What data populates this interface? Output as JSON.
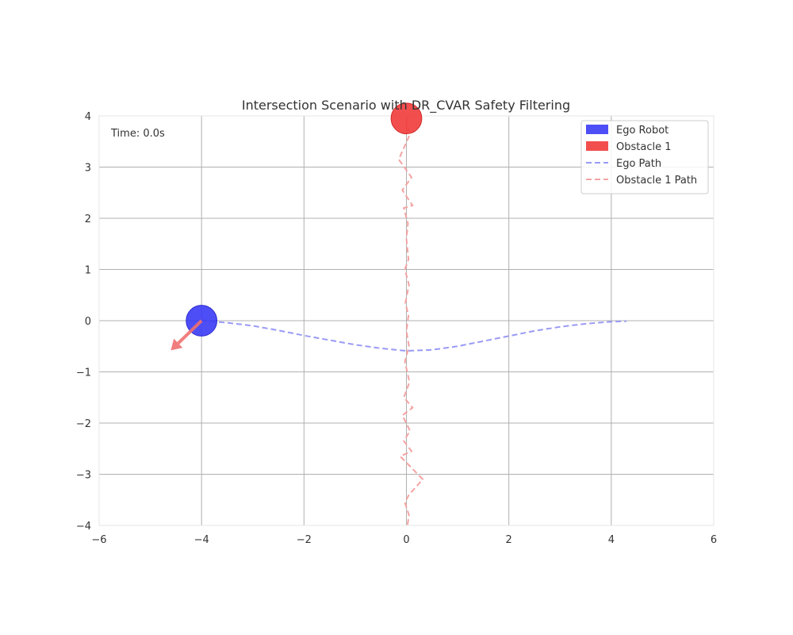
{
  "chart_data": {
    "type": "scatter",
    "title": "Intersection Scenario with DR_CVAR Safety Filtering",
    "xlabel": "",
    "ylabel": "",
    "xlim": [
      -6,
      6
    ],
    "ylim": [
      -4,
      4
    ],
    "x_ticks": [
      -6,
      -4,
      -2,
      0,
      2,
      4,
      6
    ],
    "y_ticks": [
      -4,
      -3,
      -2,
      -1,
      0,
      1,
      2,
      3,
      4
    ],
    "x_tick_labels": [
      "−6",
      "−4",
      "−2",
      "0",
      "2",
      "4",
      "6"
    ],
    "y_tick_labels": [
      "−4",
      "−3",
      "−2",
      "−1",
      "0",
      "1",
      "2",
      "3",
      "4"
    ],
    "grid": true,
    "legend_position": "top-right",
    "annotation": "Time: 0.0s",
    "legend": [
      {
        "label": "Ego Robot",
        "kind": "patch",
        "color": "#3b3bf5"
      },
      {
        "label": "Obstacle 1",
        "kind": "patch",
        "color": "#f23b3b"
      },
      {
        "label": "Ego Path",
        "kind": "dashed-line",
        "color": "#9a9af5"
      },
      {
        "label": "Obstacle 1 Path",
        "kind": "dashed-line",
        "color": "#f5a3a3"
      }
    ],
    "ego_robot": {
      "x": -4.0,
      "y": 0.0,
      "radius": 0.3,
      "color": "#3b3bf5"
    },
    "obstacle": {
      "x": 0.0,
      "y": 3.95,
      "radius": 0.3,
      "color": "#f23b3b"
    },
    "velocity_arrow": {
      "x": -4.0,
      "y": 0.0,
      "dx": -0.6,
      "dy": -0.58,
      "color": "#f07070"
    },
    "ego_path": {
      "color": "#9a9af5",
      "x": [
        -4.0,
        -3.5,
        -3.0,
        -2.5,
        -2.0,
        -1.5,
        -1.0,
        -0.5,
        0.0,
        0.5,
        1.0,
        1.5,
        2.0,
        2.5,
        3.0,
        3.5,
        4.0,
        4.3
      ],
      "y": [
        0.0,
        -0.04,
        -0.1,
        -0.19,
        -0.29,
        -0.38,
        -0.47,
        -0.54,
        -0.59,
        -0.57,
        -0.5,
        -0.4,
        -0.3,
        -0.2,
        -0.12,
        -0.06,
        -0.02,
        -0.01
      ]
    },
    "obstacle_path": {
      "color": "#f5a3a3",
      "x": [
        0.0,
        0.05,
        -0.15,
        0.1,
        -0.08,
        0.12,
        -0.05,
        0.03,
        0.0,
        0.04,
        -0.03,
        0.05,
        -0.02,
        0.04,
        0.0,
        0.05,
        -0.03,
        0.06,
        -0.05,
        0.12,
        -0.08,
        0.07,
        -0.05,
        0.1,
        -0.12,
        0.32,
        0.05,
        -0.03,
        0.05,
        0.02
      ],
      "y": [
        3.95,
        3.6,
        3.15,
        2.8,
        2.55,
        2.25,
        2.2,
        1.9,
        1.6,
        1.2,
        1.0,
        0.7,
        0.35,
        0.1,
        -0.2,
        -0.5,
        -0.8,
        -1.2,
        -1.5,
        -1.7,
        -1.85,
        -2.15,
        -2.35,
        -2.55,
        -2.65,
        -3.1,
        -3.4,
        -3.55,
        -3.8,
        -4.0
      ]
    }
  }
}
